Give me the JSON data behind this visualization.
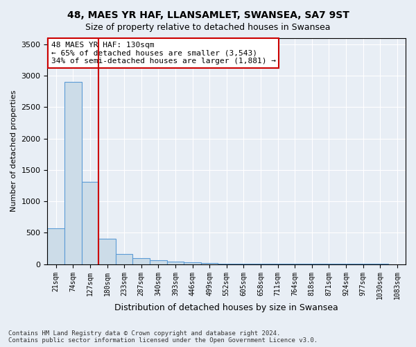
{
  "title1": "48, MAES YR HAF, LLANSAMLET, SWANSEA, SA7 9ST",
  "title2": "Size of property relative to detached houses in Swansea",
  "xlabel": "Distribution of detached houses by size in Swansea",
  "ylabel": "Number of detached properties",
  "footnote1": "Contains HM Land Registry data © Crown copyright and database right 2024.",
  "footnote2": "Contains public sector information licensed under the Open Government Licence v3.0.",
  "bar_labels": [
    "21sqm",
    "74sqm",
    "127sqm",
    "180sqm",
    "233sqm",
    "287sqm",
    "340sqm",
    "393sqm",
    "446sqm",
    "499sqm",
    "552sqm",
    "605sqm",
    "658sqm",
    "711sqm",
    "764sqm",
    "818sqm",
    "871sqm",
    "924sqm",
    "977sqm",
    "1030sqm",
    "1083sqm"
  ],
  "bar_values": [
    570,
    2900,
    1310,
    400,
    160,
    95,
    60,
    40,
    25,
    15,
    10,
    8,
    6,
    5,
    4,
    3,
    3,
    3,
    2,
    2,
    1
  ],
  "bar_color": "#ccdce8",
  "bar_edgecolor": "#5b9bd5",
  "background_color": "#e8eef5",
  "plot_bg_color": "#e8eef5",
  "grid_color": "#ffffff",
  "vline_color": "#cc0000",
  "annotation_text": "48 MAES YR HAF: 130sqm\n← 65% of detached houses are smaller (3,543)\n34% of semi-detached houses are larger (1,881) →",
  "annotation_box_edgecolor": "#cc0000",
  "ylim": [
    0,
    3600
  ],
  "title1_fontsize": 10,
  "title2_fontsize": 9,
  "bar_width": 1.0
}
